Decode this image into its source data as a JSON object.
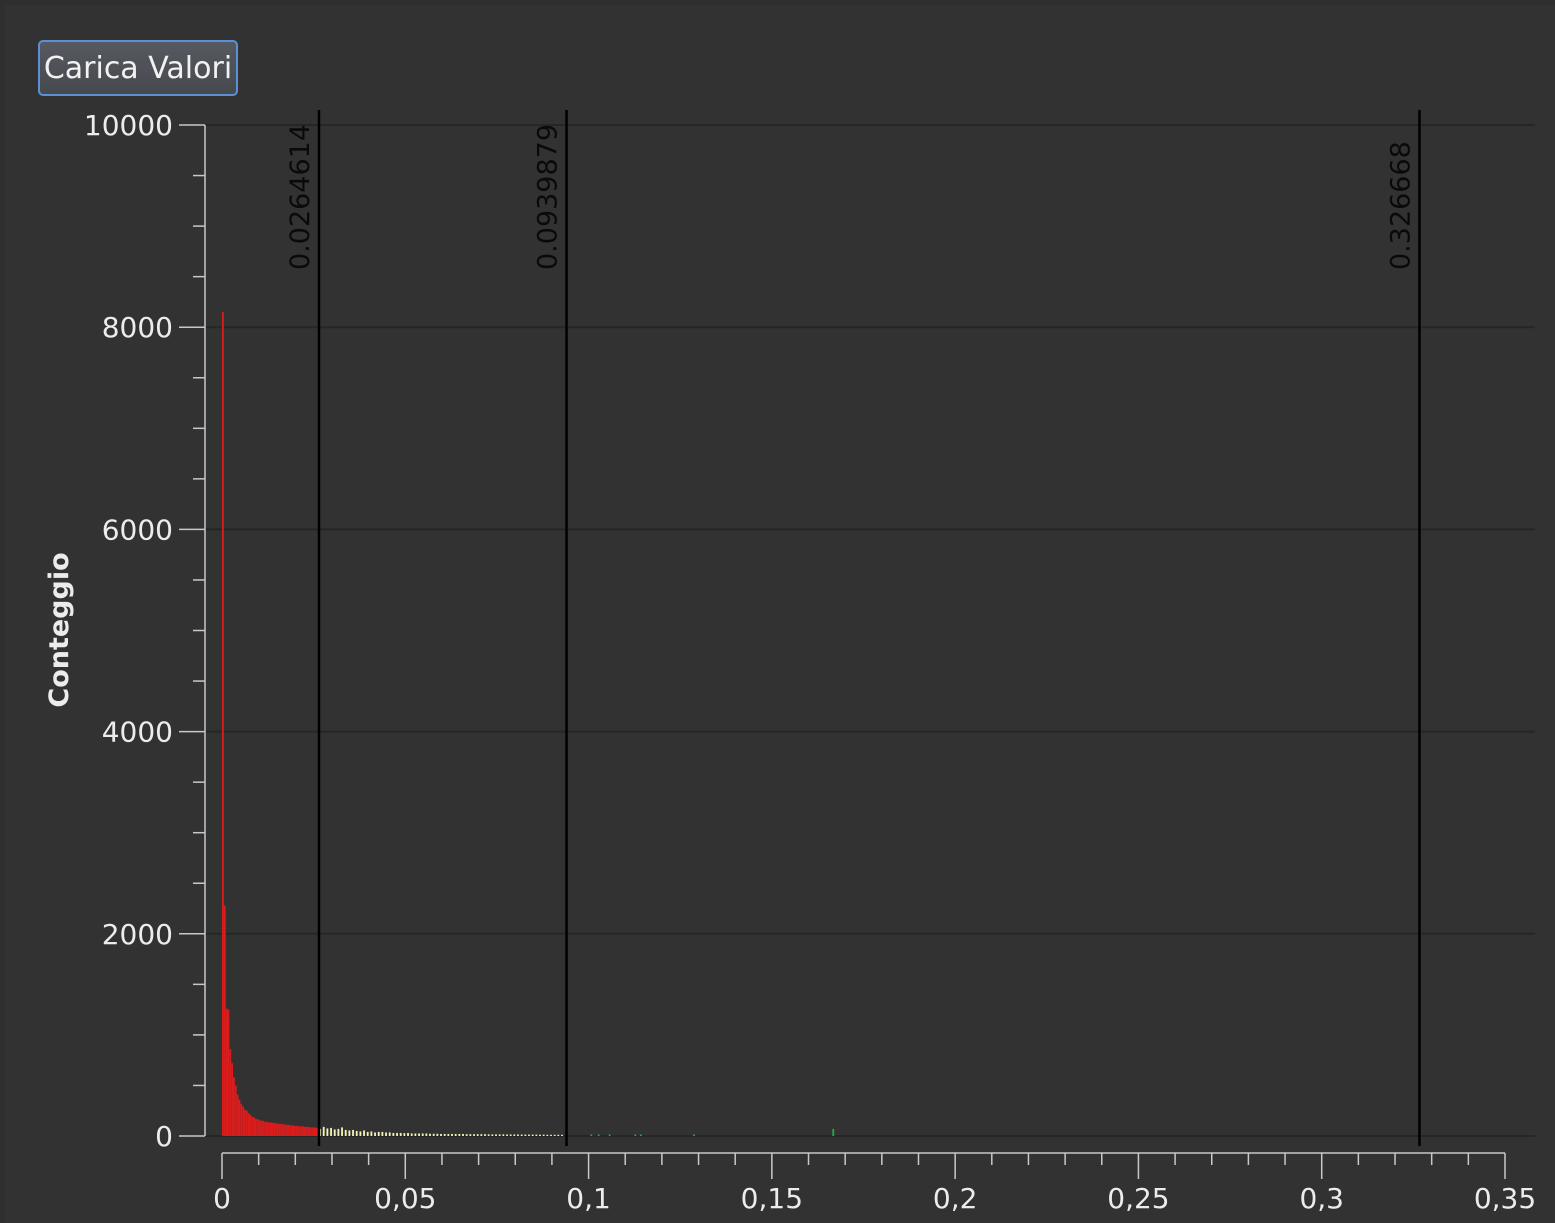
{
  "toolbar": {
    "load_button_label": "Carica Valori"
  },
  "chart_data": {
    "type": "bar",
    "ylabel": "Conteggio",
    "xlabel": "",
    "xlim": [
      0,
      0.35
    ],
    "ylim": [
      0,
      10000
    ],
    "x_ticks": [
      {
        "value": 0,
        "label": "0"
      },
      {
        "value": 0.05,
        "label": "0,05"
      },
      {
        "value": 0.1,
        "label": "0,1"
      },
      {
        "value": 0.15,
        "label": "0,15"
      },
      {
        "value": 0.2,
        "label": "0,2"
      },
      {
        "value": 0.25,
        "label": "0,25"
      },
      {
        "value": 0.3,
        "label": "0,3"
      },
      {
        "value": 0.35,
        "label": "0,35"
      }
    ],
    "y_ticks": [
      {
        "value": 0,
        "label": "0"
      },
      {
        "value": 2000,
        "label": "2000"
      },
      {
        "value": 4000,
        "label": "4000"
      },
      {
        "value": 6000,
        "label": "6000"
      },
      {
        "value": 8000,
        "label": "8000"
      },
      {
        "value": 10000,
        "label": "10000"
      }
    ],
    "grid": true,
    "colors": {
      "low": "#d91c1c",
      "mid": "#f3f1b6",
      "high": "#1fae3a",
      "marker": "#000000",
      "grid": "#262626",
      "axis": "#c8c8c8"
    },
    "markers": [
      {
        "value": 0.0264614,
        "label": "0.0264614"
      },
      {
        "value": 0.0939879,
        "label": "0.0939879"
      },
      {
        "value": 0.326668,
        "label": "0.326668"
      }
    ],
    "bin_width": 0.0005,
    "series": [
      {
        "color_key": "low",
        "x": [
          0.0,
          0.0005,
          0.001,
          0.0015,
          0.002,
          0.0025,
          0.003,
          0.0035,
          0.004,
          0.0045,
          0.005,
          0.0055,
          0.006,
          0.0065,
          0.007,
          0.0075,
          0.008,
          0.0085,
          0.009,
          0.0095,
          0.01,
          0.0105,
          0.011,
          0.0115,
          0.012,
          0.0125,
          0.013,
          0.0135,
          0.014,
          0.0145,
          0.015,
          0.0155,
          0.016,
          0.0165,
          0.017,
          0.0175,
          0.018,
          0.0185,
          0.019,
          0.0195,
          0.02,
          0.0205,
          0.021,
          0.0215,
          0.022,
          0.0225,
          0.023,
          0.0235,
          0.024,
          0.0245,
          0.025,
          0.0255,
          0.026
        ],
        "values": [
          8150,
          2280,
          1260,
          1250,
          860,
          720,
          580,
          500,
          410,
          360,
          320,
          290,
          260,
          250,
          225,
          210,
          190,
          185,
          170,
          165,
          160,
          150,
          150,
          140,
          140,
          135,
          135,
          130,
          130,
          125,
          125,
          120,
          120,
          115,
          115,
          110,
          110,
          105,
          105,
          100,
          100,
          100,
          95,
          95,
          95,
          90,
          90,
          90,
          85,
          85,
          85,
          80,
          80
        ]
      },
      {
        "color_key": "mid",
        "x": [
          0.0265,
          0.0275,
          0.0285,
          0.0295,
          0.0305,
          0.0315,
          0.0325,
          0.0335,
          0.0345,
          0.0355,
          0.0365,
          0.0375,
          0.0385,
          0.0395,
          0.0405,
          0.0415,
          0.0425,
          0.0435,
          0.0445,
          0.0455,
          0.0465,
          0.0475,
          0.0485,
          0.0495,
          0.0505,
          0.0515,
          0.0525,
          0.0535,
          0.0545,
          0.0555,
          0.0565,
          0.0575,
          0.0585,
          0.0595,
          0.0605,
          0.0615,
          0.0625,
          0.0635,
          0.0645,
          0.0655,
          0.0665,
          0.0675,
          0.0685,
          0.0695,
          0.0705,
          0.0715,
          0.0725,
          0.0735,
          0.0745,
          0.0755,
          0.0765,
          0.0775,
          0.0785,
          0.0795,
          0.0805,
          0.0815,
          0.0825,
          0.0835,
          0.0845,
          0.0855,
          0.0865,
          0.0875,
          0.0885,
          0.0895,
          0.0905,
          0.0915,
          0.0925
        ],
        "values": [
          70,
          90,
          75,
          80,
          65,
          70,
          85,
          60,
          55,
          60,
          50,
          45,
          55,
          40,
          45,
          35,
          40,
          40,
          35,
          35,
          30,
          30,
          30,
          28,
          30,
          25,
          25,
          25,
          25,
          25,
          22,
          22,
          22,
          20,
          20,
          20,
          20,
          20,
          20,
          20,
          18,
          18,
          18,
          18,
          18,
          18,
          16,
          16,
          16,
          16,
          16,
          15,
          15,
          15,
          15,
          14,
          14,
          14,
          14,
          14,
          13,
          13,
          12,
          12,
          12,
          12,
          12
        ]
      },
      {
        "color_key": "high",
        "x": [
          0.1005,
          0.1025,
          0.1055,
          0.1125,
          0.114,
          0.1285,
          0.1665
        ],
        "values": [
          15,
          15,
          15,
          15,
          15,
          15,
          70
        ]
      }
    ]
  }
}
